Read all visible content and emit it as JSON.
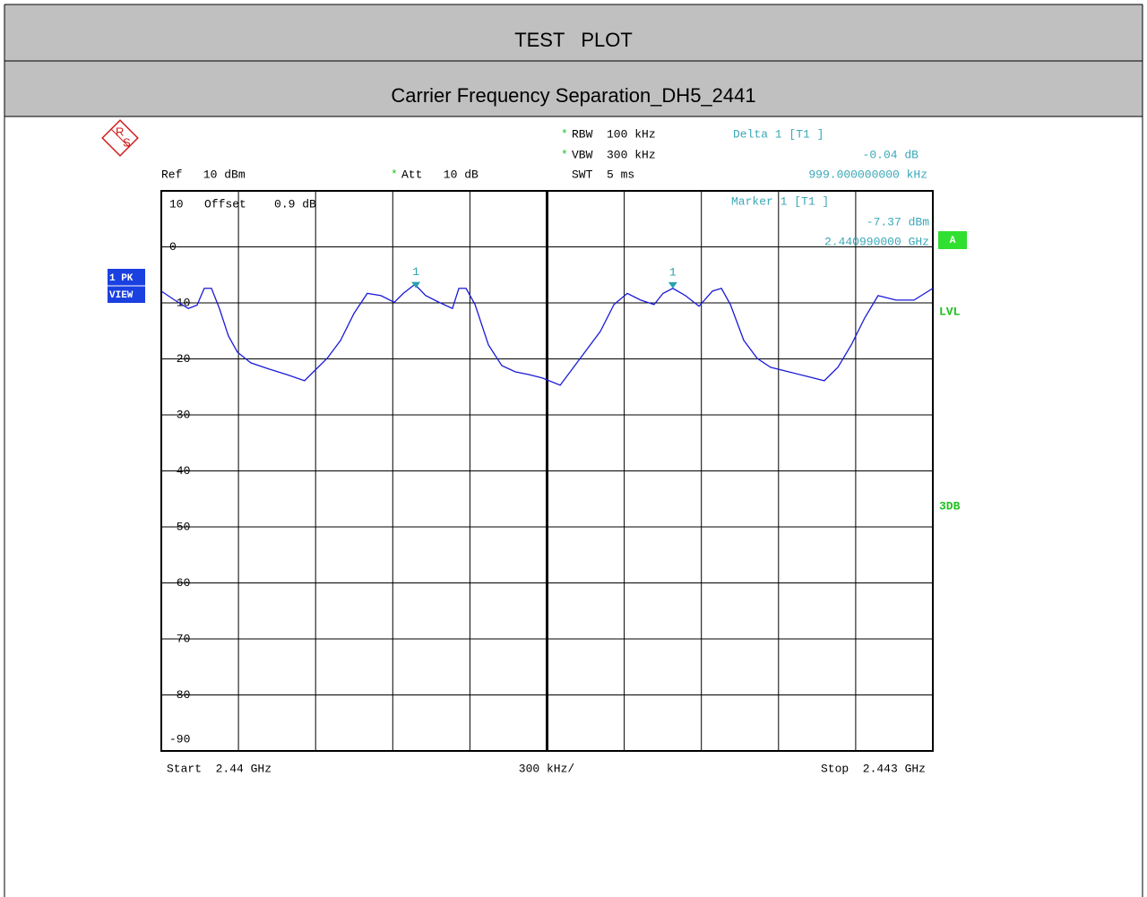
{
  "header": {
    "title": "TEST   PLOT",
    "subtitle": "Carrier Frequency Separation_DH5_2441"
  },
  "chart_data": {
    "type": "line",
    "star": "*",
    "settings": {
      "ref": "Ref   10 dBm",
      "att": "Att   10 dB",
      "rbw": "RBW  100 kHz",
      "vbw": "VBW  300 kHz",
      "swt": "SWT  5 ms",
      "offset": "Offset    0.9 dB"
    },
    "readout": {
      "delta_title": "Delta 1 [T1 ]",
      "delta_level": "-0.04 dB",
      "delta_freq": "999.000000000 kHz",
      "marker_title": "Marker 1 [T1 ]",
      "marker_level": "-7.37 dBm",
      "marker_freq": "2.440990000 GHz"
    },
    "side_labels": {
      "trace_mode": "1 PK",
      "trace_view": "VIEW",
      "trace_letter": "A",
      "lvl": "LVL",
      "db3": "3DB"
    },
    "x_labels": {
      "start": "Start  2.44 GHz",
      "span": "300 kHz/",
      "stop": "Stop  2.443 GHz"
    },
    "xlim": [
      2.44,
      2.443
    ],
    "x_divisions": 10,
    "ylim": [
      -90,
      10
    ],
    "yticks": [
      10,
      0,
      -10,
      -20,
      -30,
      -40,
      -50,
      -60,
      -70,
      -80,
      -90
    ],
    "x": [
      2.44,
      2.440052,
      2.440105,
      2.440139,
      2.440167,
      2.440195,
      2.440226,
      2.440261,
      2.440296,
      2.440348,
      2.440418,
      2.440488,
      2.440557,
      2.440592,
      2.440645,
      2.440697,
      2.440749,
      2.440801,
      2.440854,
      2.440906,
      2.440941,
      2.440986,
      2.441028,
      2.44108,
      2.441132,
      2.441157,
      2.441185,
      2.44122,
      2.441272,
      2.441324,
      2.441376,
      2.441429,
      2.441481,
      2.441551,
      2.441603,
      2.441655,
      2.441707,
      2.44176,
      2.441812,
      2.441864,
      2.441916,
      2.441951,
      2.441989,
      2.442038,
      2.442091,
      2.442143,
      2.442178,
      2.442213,
      2.442265,
      2.442317,
      2.442369,
      2.442439,
      2.442509,
      2.442578,
      2.442631,
      2.442683,
      2.442735,
      2.442787,
      2.442857,
      2.442927,
      2.443
    ],
    "series": [
      {
        "name": "1 PK",
        "color": "#1a1ad8",
        "values": [
          -7.9,
          -9.5,
          -11,
          -10.4,
          -7.4,
          -7.4,
          -11,
          -15.9,
          -18.8,
          -20.7,
          -21.8,
          -22.8,
          -23.9,
          -22.3,
          -19.9,
          -16.7,
          -11.9,
          -8.3,
          -8.7,
          -9.9,
          -8.3,
          -6.7,
          -8.7,
          -9.9,
          -11,
          -7.4,
          -7.4,
          -10.3,
          -17.5,
          -21.2,
          -22.3,
          -22.8,
          -23.4,
          -24.7,
          -21.5,
          -18.3,
          -15.1,
          -10.3,
          -8.3,
          -9.5,
          -10.3,
          -8.3,
          -7.4,
          -8.7,
          -10.6,
          -7.9,
          -7.4,
          -10.3,
          -16.7,
          -19.9,
          -21.5,
          -22.3,
          -23.1,
          -23.9,
          -21.5,
          -17.5,
          -12.7,
          -8.7,
          -9.5,
          -9.5,
          -7.4
        ]
      }
    ],
    "markers": [
      {
        "label": "1",
        "x": 2.44099,
        "y": -7.37,
        "color": "#2aa0b0"
      },
      {
        "label": "1",
        "x": 2.441989,
        "y": -7.41,
        "color": "#2aa0b0"
      }
    ]
  }
}
